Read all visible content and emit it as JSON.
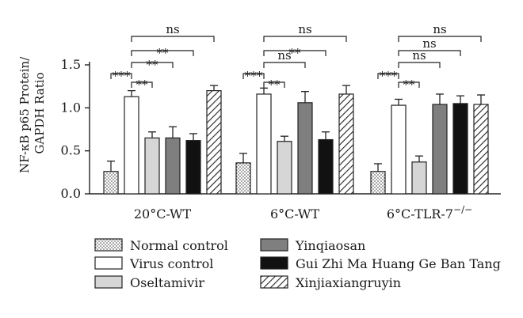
{
  "chart_data": {
    "type": "bar",
    "ylabel_line1": "NF-κB p65 Protein/",
    "ylabel_line2": "GAPDH Ratio",
    "ylim": [
      0,
      1.5
    ],
    "yticks": [
      "0.0",
      "0.5",
      "1.0",
      "1.5"
    ],
    "yticks_values": [
      0,
      0.5,
      1.0,
      1.5
    ],
    "groups": [
      {
        "label": "20°C-WT"
      },
      {
        "label": "6°C-WT"
      },
      {
        "label": "6°C-TLR-7",
        "label_superscript": "−/−"
      }
    ],
    "series": [
      {
        "name": "Normal control",
        "values": [
          0.26,
          0.36,
          0.26
        ],
        "errors": [
          0.12,
          0.11,
          0.09
        ],
        "fill": "dots"
      },
      {
        "name": "Virus control",
        "values": [
          1.13,
          1.16,
          1.03
        ],
        "errors": [
          0.07,
          0.07,
          0.07
        ],
        "fill": "#ffffff"
      },
      {
        "name": "Oseltamivir",
        "values": [
          0.65,
          0.61,
          0.37
        ],
        "errors": [
          0.07,
          0.06,
          0.07
        ],
        "fill": "#d6d6d6"
      },
      {
        "name": "Yinqiaosan",
        "values": [
          0.65,
          1.06,
          1.04
        ],
        "errors": [
          0.13,
          0.13,
          0.12
        ],
        "fill": "#7f7f7f"
      },
      {
        "name": "Gui Zhi Ma Huang Ge Ban Tang",
        "values": [
          0.62,
          0.63,
          1.05
        ],
        "errors": [
          0.08,
          0.09,
          0.09
        ],
        "fill": "#111111"
      },
      {
        "name": "Xinjiaxiangruyin",
        "values": [
          1.2,
          1.16,
          1.04
        ],
        "errors": [
          0.06,
          0.1,
          0.11
        ],
        "fill": "hatch"
      }
    ],
    "significance": [
      {
        "group": 0,
        "from": 0,
        "to": 1,
        "label": "***"
      },
      {
        "group": 0,
        "from": 1,
        "to": 2,
        "label": "**"
      },
      {
        "group": 0,
        "from": 1,
        "to": 3,
        "label": "**"
      },
      {
        "group": 0,
        "from": 1,
        "to": 4,
        "label": "**"
      },
      {
        "group": 0,
        "from": 1,
        "to": 5,
        "label": "ns"
      },
      {
        "group": 1,
        "from": 0,
        "to": 1,
        "label": "***"
      },
      {
        "group": 1,
        "from": 1,
        "to": 2,
        "label": "**"
      },
      {
        "group": 1,
        "from": 1,
        "to": 3,
        "label": "ns"
      },
      {
        "group": 1,
        "from": 1,
        "to": 4,
        "label": "**"
      },
      {
        "group": 1,
        "from": 1,
        "to": 5,
        "label": "ns"
      },
      {
        "group": 2,
        "from": 0,
        "to": 1,
        "label": "***"
      },
      {
        "group": 2,
        "from": 1,
        "to": 2,
        "label": "**"
      },
      {
        "group": 2,
        "from": 1,
        "to": 3,
        "label": "ns"
      },
      {
        "group": 2,
        "from": 1,
        "to": 4,
        "label": "ns"
      },
      {
        "group": 2,
        "from": 1,
        "to": 5,
        "label": "ns"
      }
    ],
    "legend": {
      "placement": "bottom",
      "columns": 2
    },
    "grid": false
  }
}
